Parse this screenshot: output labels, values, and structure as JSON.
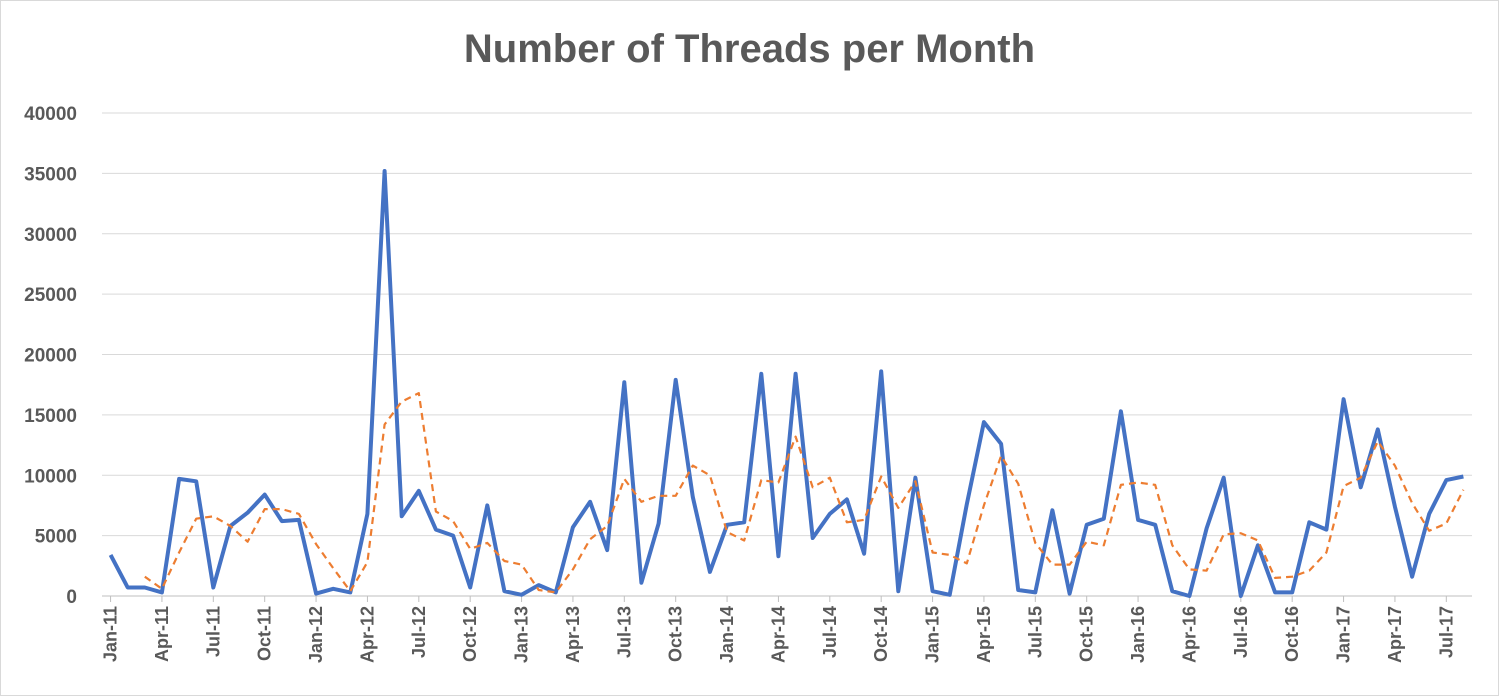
{
  "chart_data": {
    "type": "line",
    "title": "Number of Threads per Month",
    "xlabel": "",
    "ylabel": "",
    "ylim": [
      0,
      40000
    ],
    "yticks": [
      0,
      5000,
      10000,
      15000,
      20000,
      25000,
      30000,
      35000,
      40000
    ],
    "grid": true,
    "legend": "none",
    "x": [
      "Jan-11",
      "Feb-11",
      "Mar-11",
      "Apr-11",
      "May-11",
      "Jun-11",
      "Jul-11",
      "Aug-11",
      "Sep-11",
      "Oct-11",
      "Nov-11",
      "Dec-11",
      "Jan-12",
      "Feb-12",
      "Mar-12",
      "Apr-12",
      "May-12",
      "Jun-12",
      "Jul-12",
      "Aug-12",
      "Sep-12",
      "Oct-12",
      "Nov-12",
      "Dec-12",
      "Jan-13",
      "Feb-13",
      "Mar-13",
      "Apr-13",
      "May-13",
      "Jun-13",
      "Jul-13",
      "Aug-13",
      "Sep-13",
      "Oct-13",
      "Nov-13",
      "Dec-13",
      "Jan-14",
      "Feb-14",
      "Mar-14",
      "Apr-14",
      "May-14",
      "Jun-14",
      "Jul-14",
      "Aug-14",
      "Sep-14",
      "Oct-14",
      "Nov-14",
      "Dec-14",
      "Jan-15",
      "Feb-15",
      "Mar-15",
      "Apr-15",
      "May-15",
      "Jun-15",
      "Jul-15",
      "Aug-15",
      "Sep-15",
      "Oct-15",
      "Nov-15",
      "Dec-15",
      "Jan-16",
      "Feb-16",
      "Mar-16",
      "Apr-16",
      "May-16",
      "Jun-16",
      "Jul-16",
      "Aug-16",
      "Sep-16",
      "Oct-16",
      "Nov-16",
      "Dec-16",
      "Jan-17",
      "Feb-17",
      "Mar-17",
      "Apr-17",
      "May-17",
      "Jun-17",
      "Jul-17",
      "Aug-17"
    ],
    "x_tick_labels": [
      "Jan-11",
      "Apr-11",
      "Jul-11",
      "Oct-11",
      "Jan-12",
      "Apr-12",
      "Jul-12",
      "Oct-12",
      "Jan-13",
      "Apr-13",
      "Jul-13",
      "Oct-13",
      "Jan-14",
      "Apr-14",
      "Jul-14",
      "Oct-14",
      "Jan-15",
      "Apr-15",
      "Jul-15",
      "Oct-15",
      "Jan-16",
      "Apr-16",
      "Jul-16",
      "Oct-16",
      "Jan-17",
      "Apr-17",
      "Jul-17"
    ],
    "series": [
      {
        "style": "solid",
        "color": "#4472c4",
        "values": [
          3400,
          700,
          700,
          300,
          9700,
          9500,
          700,
          5800,
          6900,
          8400,
          6200,
          6300,
          200,
          600,
          300,
          6800,
          35200,
          6600,
          8700,
          5500,
          5000,
          700,
          7500,
          400,
          100,
          900,
          300,
          5700,
          7800,
          3800,
          17700,
          1100,
          6000,
          17900,
          8200,
          2000,
          5900,
          6100,
          18400,
          3300,
          18400,
          4800,
          6800,
          8000,
          3500,
          18600,
          400,
          9800,
          400,
          100,
          7600,
          14400,
          12600,
          500,
          300,
          7100,
          200,
          5900,
          6400,
          15300,
          6300,
          5900,
          400,
          0,
          5600,
          9800,
          0,
          4200,
          300,
          300,
          6100,
          5500,
          16300,
          9000,
          13800,
          7400,
          1600,
          6800,
          9600,
          9900
        ]
      },
      {
        "style": "dashed",
        "color": "#ed7d31",
        "values": [
          null,
          null,
          1600,
          600,
          3600,
          6400,
          6600,
          5800,
          4500,
          7200,
          7200,
          6800,
          4300,
          2300,
          400,
          2800,
          14200,
          16100,
          16800,
          7000,
          6200,
          3900,
          4400,
          2900,
          2600,
          500,
          300,
          2200,
          4700,
          5800,
          9700,
          7800,
          8300,
          8300,
          10800,
          10000,
          5300,
          4600,
          9600,
          9400,
          13200,
          9000,
          9800,
          6100,
          6300,
          9900,
          7300,
          9500,
          3600,
          3400,
          2700,
          7500,
          11600,
          9300,
          4400,
          2600,
          2600,
          4500,
          4200,
          9200,
          9400,
          9200,
          4200,
          2200,
          2100,
          5100,
          5200,
          4600,
          1500,
          1600,
          2100,
          3600,
          9100,
          9800,
          12800,
          10800,
          7700,
          5400,
          6000,
          8800
        ]
      }
    ]
  }
}
